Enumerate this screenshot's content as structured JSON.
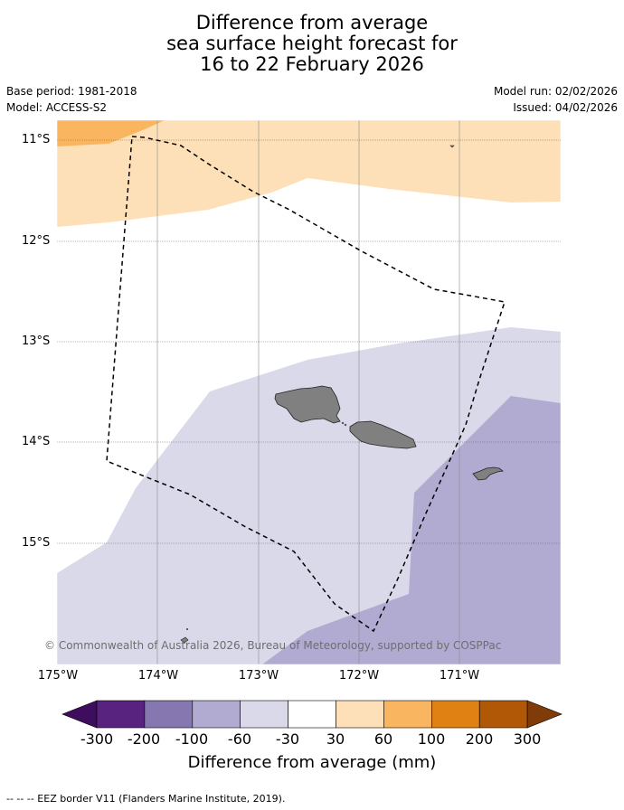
{
  "title": {
    "line1": "Difference from average",
    "line2": "sea surface height forecast for",
    "line3": "16 to 22 February 2026"
  },
  "meta": {
    "base_period": "Base period: 1981-2018",
    "model": "Model: ACCESS-S2",
    "model_run": "Model run: 02/02/2026",
    "issued": "Issued: 04/02/2026"
  },
  "axes": {
    "lat_labels": [
      "11°S",
      "12°S",
      "13°S",
      "14°S",
      "15°S"
    ],
    "lon_labels": [
      "175°W",
      "174°W",
      "173°W",
      "172°W",
      "171°W"
    ]
  },
  "copyright": "© Commonwealth of Australia 2026, Bureau of Meteorology, supported by COSPPac",
  "colorbar": {
    "title": "Difference from average (mm)",
    "ticks": [
      "-300",
      "-200",
      "-100",
      "-60",
      "-30",
      "30",
      "60",
      "100",
      "200",
      "300"
    ],
    "colors": [
      "#3f0d5e",
      "#58237f",
      "#8677b1",
      "#b1abd2",
      "#d9d9ea",
      "#ffffff",
      "#fde0b8",
      "#f9b55f",
      "#e08213",
      "#b15806",
      "#7f3b08"
    ]
  },
  "footer": "--  --  -- EEZ border V11 (Flanders Marine Institute, 2019)."
}
